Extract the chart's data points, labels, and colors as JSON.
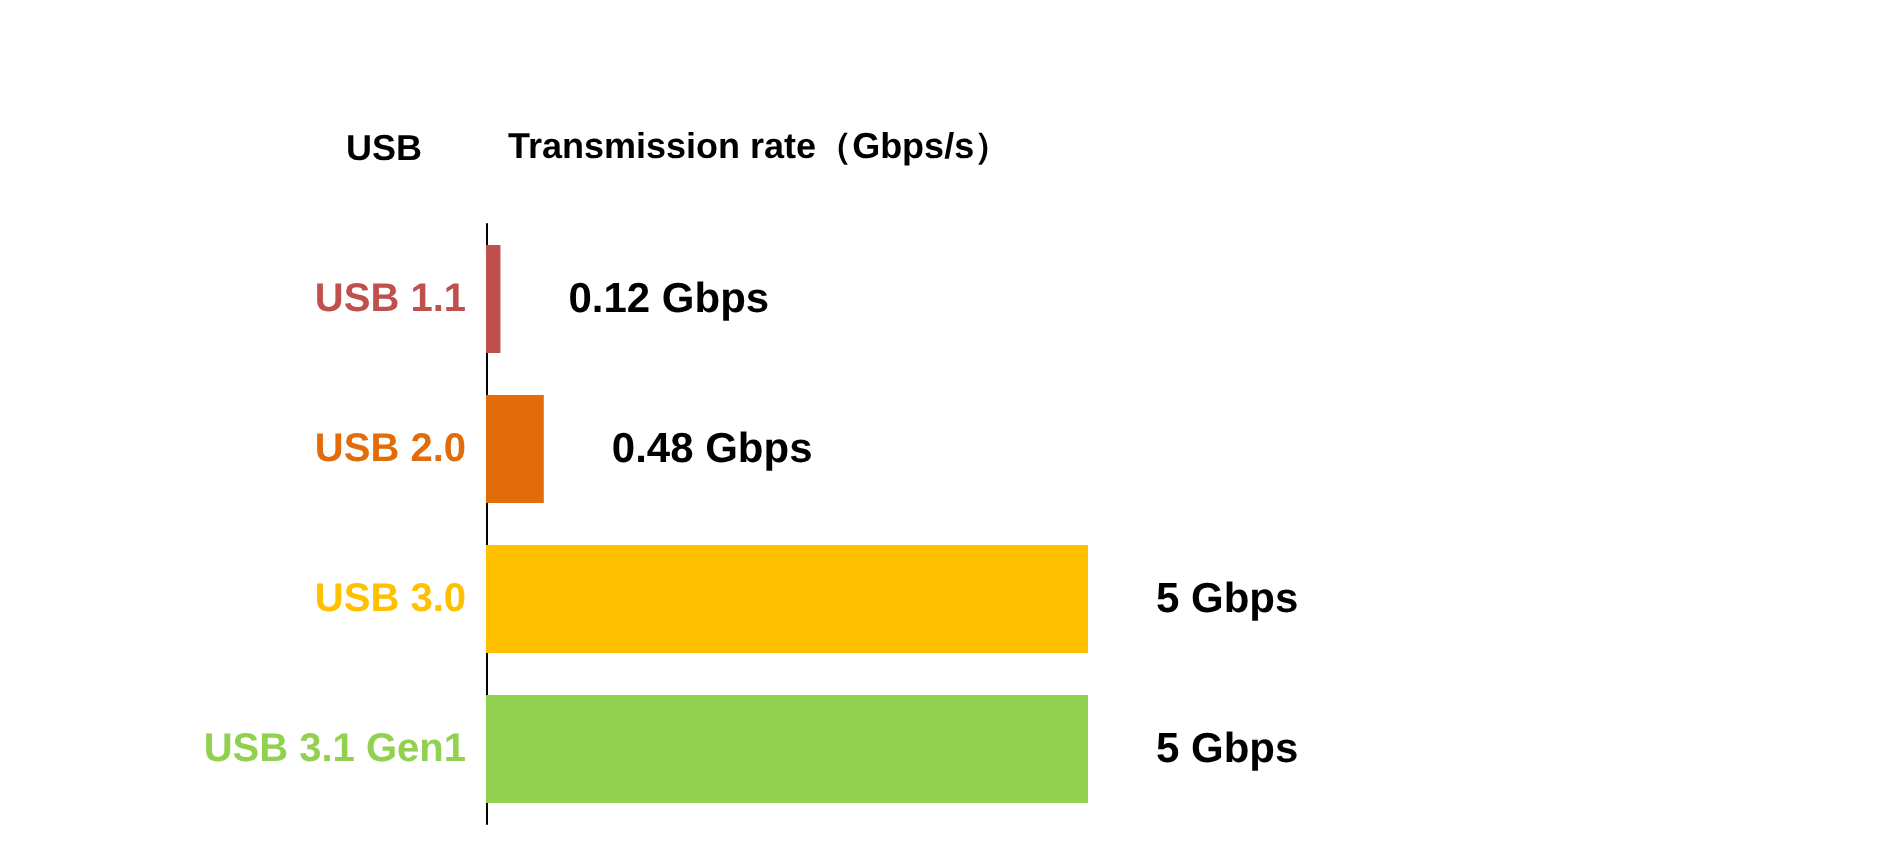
{
  "chart_data": {
    "type": "bar",
    "orientation": "horizontal",
    "ylabel": "USB",
    "xlabel": "Transmission rate（Gbps/s）",
    "categories": [
      "USB 1.1",
      "USB 2.0",
      "USB 3.0",
      "USB 3.1 Gen1"
    ],
    "values": [
      0.12,
      0.48,
      5,
      5
    ],
    "colors": [
      "#c0504d",
      "#e36c0a",
      "#ffc000",
      "#92d050"
    ],
    "value_labels": [
      "0.12 Gbps",
      "0.48 Gbps",
      "5 Gbps",
      "5 Gbps"
    ]
  }
}
